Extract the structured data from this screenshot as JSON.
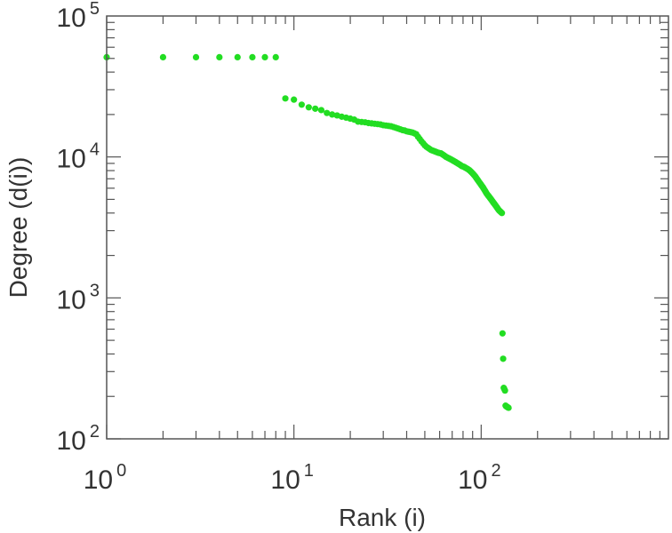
{
  "chart_data": {
    "type": "scatter",
    "xlabel": "Rank (i)",
    "ylabel": "Degree (d(i))",
    "xscale": "log",
    "yscale": "log",
    "xlim": [
      1,
      1000
    ],
    "ylim": [
      100,
      100000
    ],
    "grid": false,
    "legend": "none",
    "marker_color": "#22dd22",
    "x_ticks": [
      {
        "value": 1,
        "base": "10",
        "exp": "0"
      },
      {
        "value": 10,
        "base": "10",
        "exp": "1"
      },
      {
        "value": 100,
        "base": "10",
        "exp": "2"
      }
    ],
    "y_ticks": [
      {
        "value": 100,
        "base": "10",
        "exp": "2"
      },
      {
        "value": 1000,
        "base": "10",
        "exp": "3"
      },
      {
        "value": 10000,
        "base": "10",
        "exp": "4"
      },
      {
        "value": 100000,
        "base": "10",
        "exp": "5"
      }
    ],
    "series": [
      {
        "x": [
          1,
          2,
          3,
          4,
          5,
          6,
          7,
          8,
          9,
          10,
          11,
          12,
          13,
          14,
          15,
          16,
          17,
          18,
          19,
          20,
          21,
          22,
          23,
          24,
          25,
          26,
          27,
          28,
          29,
          30,
          31,
          32,
          33,
          34,
          35,
          36,
          37,
          38,
          39,
          40,
          41,
          42,
          43,
          44,
          45,
          46,
          47,
          48,
          49,
          50,
          51,
          52,
          53,
          54,
          55,
          56,
          57,
          58,
          59,
          60,
          61,
          62,
          63,
          64,
          65,
          66,
          67,
          68,
          69,
          70,
          71,
          72,
          73,
          74,
          75,
          76,
          77,
          78,
          79,
          80,
          81,
          82,
          83,
          84,
          85,
          86,
          87,
          88,
          89,
          90,
          91,
          92,
          93,
          94,
          95,
          96,
          97,
          98,
          99,
          100,
          101,
          102,
          103,
          104,
          105,
          106,
          107,
          108,
          109,
          110,
          111,
          112,
          113,
          114,
          115,
          116,
          117,
          118,
          119,
          120,
          121,
          122,
          123,
          124,
          125,
          126,
          127,
          128,
          129,
          130,
          131,
          132,
          133,
          134,
          135,
          136,
          137,
          138,
          139,
          140
        ],
        "y": [
          51000,
          51000,
          51000,
          51000,
          51000,
          51000,
          51000,
          51000,
          26000,
          25500,
          23500,
          22500,
          22000,
          21500,
          20500,
          20000,
          19700,
          19300,
          19000,
          18700,
          18400,
          17800,
          17700,
          17600,
          17400,
          17300,
          17200,
          17100,
          17000,
          16800,
          16700,
          16600,
          16500,
          16300,
          16100,
          15900,
          15700,
          15500,
          15400,
          15200,
          15100,
          15000,
          14900,
          14700,
          14500,
          13900,
          13400,
          12900,
          12500,
          12100,
          11800,
          11600,
          11400,
          11200,
          11100,
          11000,
          10900,
          10800,
          10700,
          10650,
          10600,
          10450,
          10300,
          10150,
          10000,
          9900,
          9800,
          9700,
          9600,
          9500,
          9400,
          9300,
          9200,
          9100,
          9000,
          8900,
          8800,
          8700,
          8600,
          8550,
          8500,
          8420,
          8340,
          8260,
          8180,
          8100,
          8000,
          7880,
          7760,
          7640,
          7520,
          7400,
          7260,
          7120,
          6980,
          6840,
          6700,
          6580,
          6460,
          6340,
          6220,
          6100,
          5980,
          5860,
          5740,
          5620,
          5500,
          5410,
          5320,
          5240,
          5160,
          5080,
          5000,
          4920,
          4840,
          4760,
          4690,
          4620,
          4550,
          4480,
          4410,
          4340,
          4270,
          4210,
          4160,
          4120,
          4080,
          4040,
          4000,
          560,
          370,
          230,
          225,
          220,
          172,
          170,
          169,
          168,
          167,
          166
        ]
      }
    ]
  }
}
